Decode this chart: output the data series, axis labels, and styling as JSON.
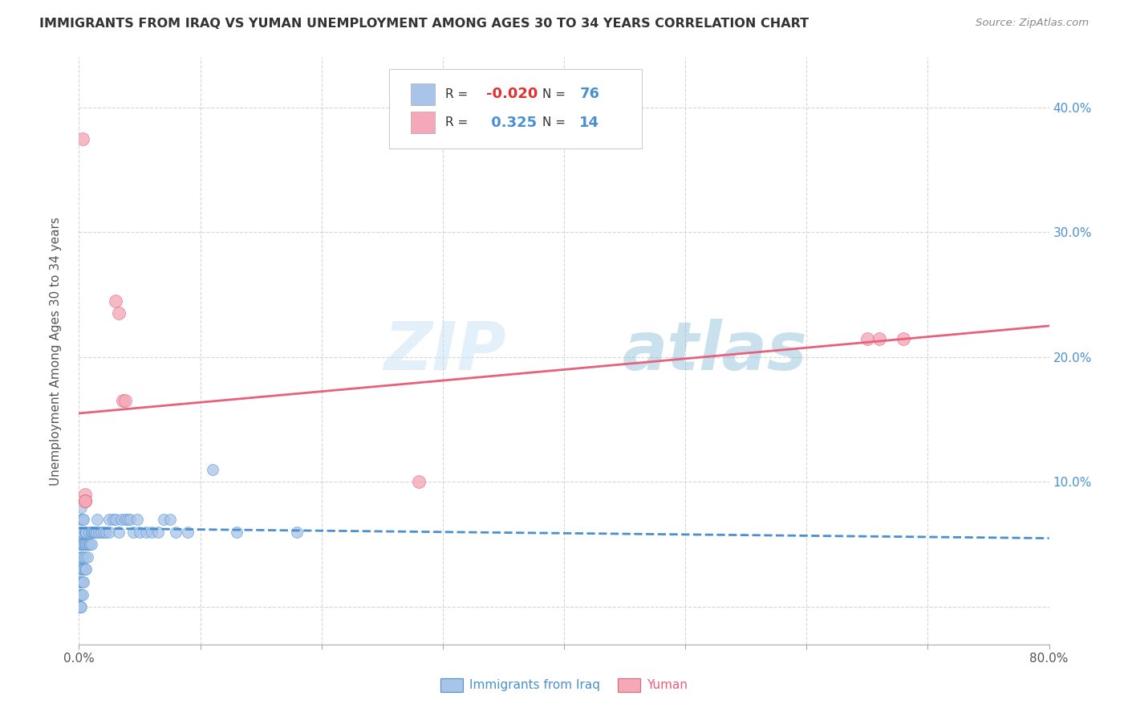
{
  "title": "IMMIGRANTS FROM IRAQ VS YUMAN UNEMPLOYMENT AMONG AGES 30 TO 34 YEARS CORRELATION CHART",
  "source": "Source: ZipAtlas.com",
  "ylabel": "Unemployment Among Ages 30 to 34 years",
  "color_blue": "#a8c4e8",
  "color_pink": "#f4a8b8",
  "line_blue": "#4a90d0",
  "line_pink": "#e8607a",
  "background_color": "#ffffff",
  "watermark_zip": "ZIP",
  "watermark_atlas": "atlas",
  "xlim": [
    0.0,
    0.8
  ],
  "ylim": [
    -0.03,
    0.44
  ],
  "iraq_x": [
    0.001,
    0.001,
    0.001,
    0.001,
    0.001,
    0.001,
    0.001,
    0.001,
    0.001,
    0.001,
    0.001,
    0.002,
    0.002,
    0.002,
    0.002,
    0.002,
    0.002,
    0.002,
    0.002,
    0.002,
    0.003,
    0.003,
    0.003,
    0.003,
    0.003,
    0.003,
    0.003,
    0.004,
    0.004,
    0.004,
    0.004,
    0.005,
    0.005,
    0.005,
    0.005,
    0.006,
    0.006,
    0.006,
    0.007,
    0.007,
    0.008,
    0.008,
    0.009,
    0.01,
    0.01,
    0.011,
    0.012,
    0.013,
    0.014,
    0.015,
    0.016,
    0.018,
    0.02,
    0.022,
    0.025,
    0.025,
    0.028,
    0.03,
    0.033,
    0.035,
    0.038,
    0.04,
    0.042,
    0.045,
    0.048,
    0.05,
    0.055,
    0.06,
    0.065,
    0.07,
    0.075,
    0.08,
    0.09,
    0.11,
    0.13,
    0.18
  ],
  "iraq_y": [
    0.0,
    0.0,
    0.0,
    0.01,
    0.01,
    0.02,
    0.02,
    0.03,
    0.04,
    0.05,
    0.06,
    0.0,
    0.01,
    0.02,
    0.03,
    0.04,
    0.05,
    0.06,
    0.07,
    0.08,
    0.01,
    0.02,
    0.03,
    0.04,
    0.05,
    0.06,
    0.07,
    0.02,
    0.03,
    0.05,
    0.07,
    0.03,
    0.04,
    0.05,
    0.06,
    0.03,
    0.05,
    0.06,
    0.04,
    0.05,
    0.05,
    0.06,
    0.05,
    0.05,
    0.06,
    0.06,
    0.06,
    0.06,
    0.06,
    0.07,
    0.06,
    0.06,
    0.06,
    0.06,
    0.06,
    0.07,
    0.07,
    0.07,
    0.06,
    0.07,
    0.07,
    0.07,
    0.07,
    0.06,
    0.07,
    0.06,
    0.06,
    0.06,
    0.06,
    0.07,
    0.07,
    0.06,
    0.06,
    0.11,
    0.06,
    0.06
  ],
  "yuman_x": [
    0.003,
    0.005,
    0.005,
    0.005,
    0.03,
    0.033,
    0.036,
    0.038,
    0.28,
    0.65,
    0.66,
    0.68,
    0.005,
    0.005
  ],
  "yuman_y": [
    0.375,
    0.09,
    0.085,
    0.085,
    0.245,
    0.235,
    0.165,
    0.165,
    0.1,
    0.215,
    0.215,
    0.215,
    0.085,
    0.085
  ],
  "iraq_line_x0": 0.0,
  "iraq_line_x1": 0.8,
  "iraq_line_y0": 0.063,
  "iraq_line_y1": 0.055,
  "yuman_line_x0": 0.0,
  "yuman_line_x1": 0.8,
  "yuman_line_y0": 0.155,
  "yuman_line_y1": 0.225
}
